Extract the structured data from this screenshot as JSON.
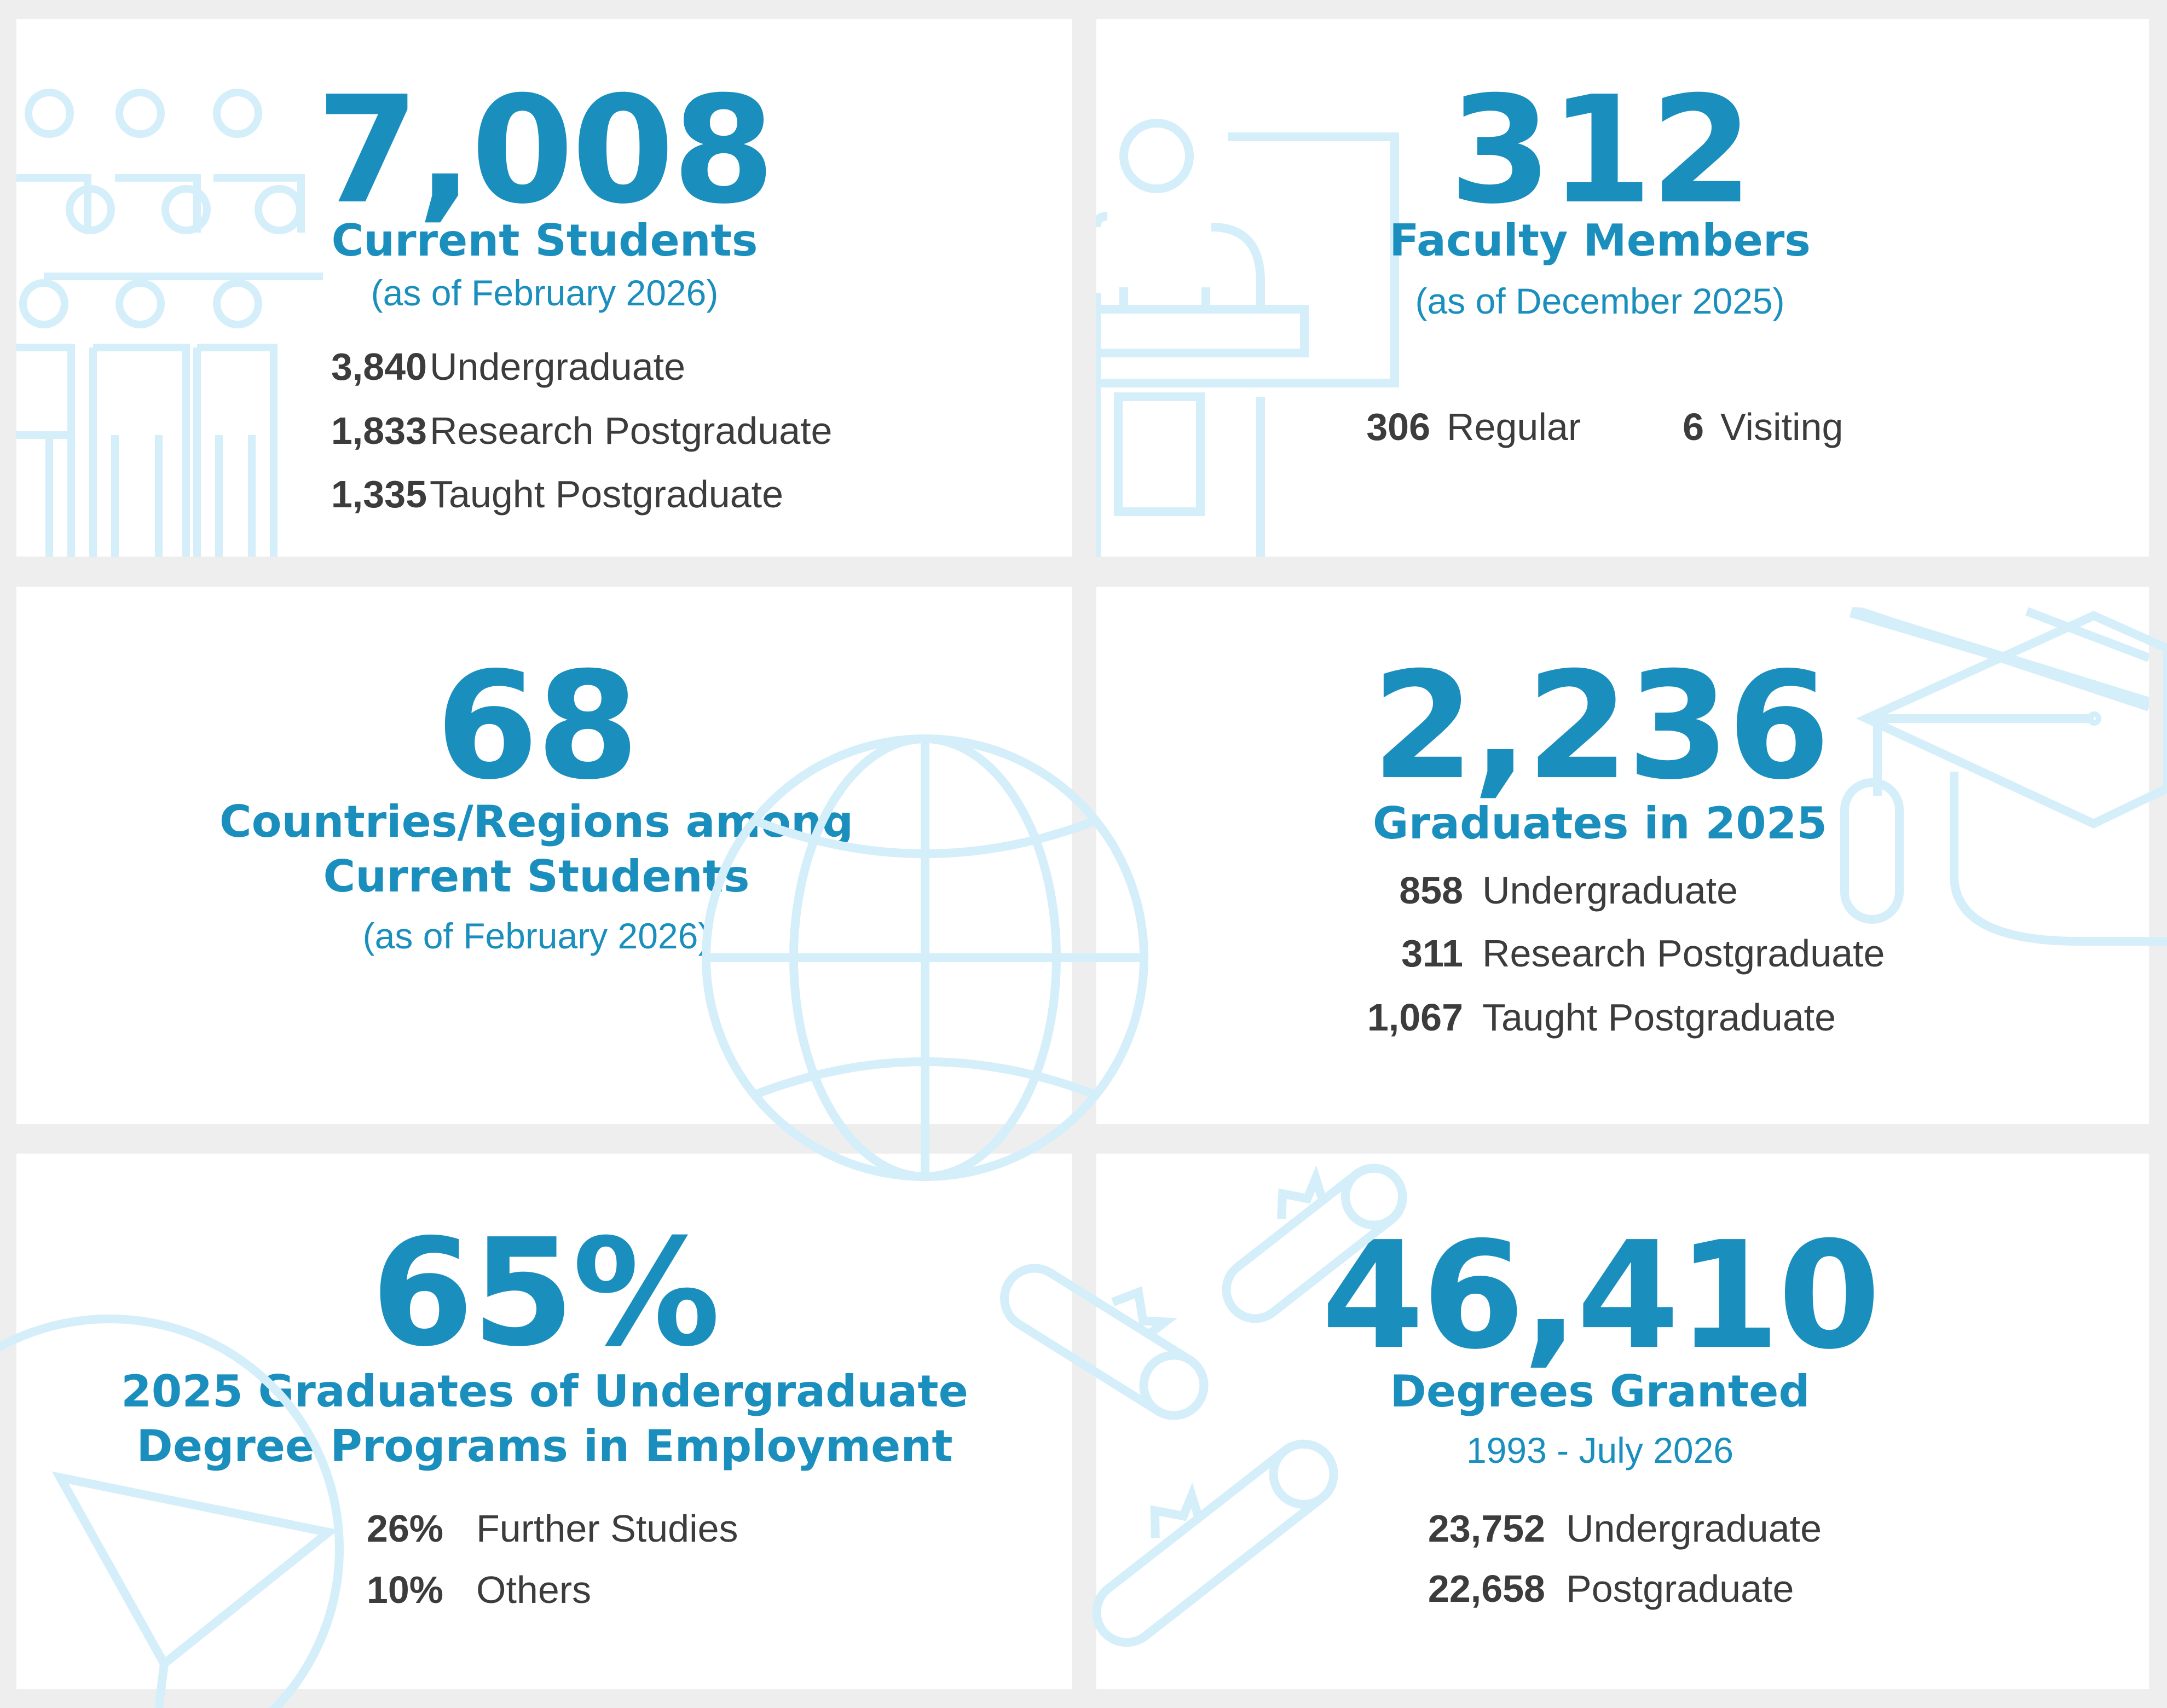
{
  "colors": {
    "accent": "#1a8fbd",
    "icon": "#d4eefa",
    "text": "#3c3c3c",
    "background": "#eeeeee",
    "card": "#ffffff"
  },
  "cards": [
    {
      "icon": "people-icon",
      "big": "7,008",
      "title": "Current Students",
      "subtitle": "(as of February 2026)",
      "rows": [
        {
          "num": "3,840",
          "label": "Undergraduate"
        },
        {
          "num": "1,833",
          "label": "Research Postgraduate"
        },
        {
          "num": "1,335",
          "label": "Taught Postgraduate"
        }
      ]
    },
    {
      "icon": "lecturer-podium-icon",
      "big": "312",
      "title": "Faculty Members",
      "subtitle": "(as of December 2025)",
      "rows": [
        {
          "num": "306",
          "label": "Regular"
        },
        {
          "num": "6",
          "label": "Visiting"
        }
      ]
    },
    {
      "icon": "globe-icon",
      "big": "68",
      "title_line1": "Countries/Regions among",
      "title_line2": "Current Students",
      "subtitle": "(as of February 2026)"
    },
    {
      "icon": "graduation-cap-icon",
      "big": "2,236",
      "title": "Graduates in 2025",
      "rows": [
        {
          "num": "858",
          "label": "Undergraduate"
        },
        {
          "num": "311",
          "label": "Research Postgraduate"
        },
        {
          "num": "1,067",
          "label": "Taught Postgraduate"
        }
      ]
    },
    {
      "icon": "briefcase-icon",
      "big": "65%",
      "title_line1": "2025 Graduates of Undergraduate",
      "title_line2": "Degree Programs in Employment",
      "rows": [
        {
          "num": "26%",
          "label": "Further Studies"
        },
        {
          "num": "10%",
          "label": "Others"
        }
      ]
    },
    {
      "icon": "diploma-scroll-icon",
      "big": "46,410",
      "title": "Degrees Granted",
      "subtitle": "1993 - July 2026",
      "rows": [
        {
          "num": "23,752",
          "label": "Undergraduate"
        },
        {
          "num": "22,658",
          "label": "Postgraduate"
        }
      ]
    }
  ]
}
